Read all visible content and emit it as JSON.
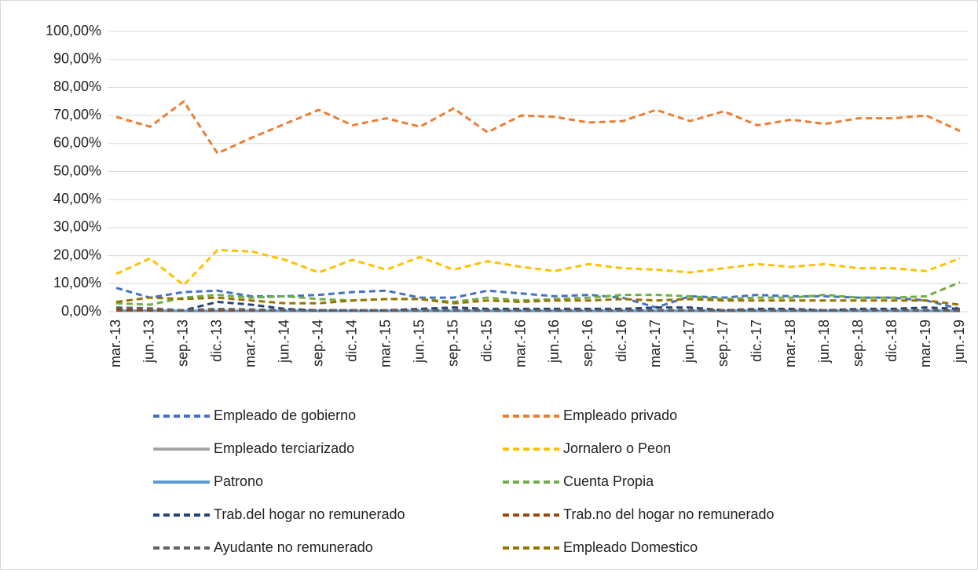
{
  "chart_data": {
    "type": "line",
    "categories": [
      "mar.-13",
      "jun.-13",
      "sep.-13",
      "dic.-13",
      "mar.-14",
      "jun.-14",
      "sep.-14",
      "dic.-14",
      "mar.-15",
      "jun.-15",
      "sep.-15",
      "dic.-15",
      "mar.-16",
      "jun.-16",
      "sep.-16",
      "dic.-16",
      "mar.-17",
      "jun.-17",
      "sep.-17",
      "dic.-17",
      "mar.-18",
      "jun.-18",
      "sep.-18",
      "dic.-18",
      "mar.-19",
      "jun.-19"
    ],
    "ylim": [
      0,
      100
    ],
    "yticks": [
      {
        "value": 0,
        "label": "0,00%"
      },
      {
        "value": 10,
        "label": "10,00%"
      },
      {
        "value": 20,
        "label": "20,00%"
      },
      {
        "value": 30,
        "label": "30,00%"
      },
      {
        "value": 40,
        "label": "40,00%"
      },
      {
        "value": 50,
        "label": "50,00%"
      },
      {
        "value": 60,
        "label": "60,00%"
      },
      {
        "value": 70,
        "label": "70,00%"
      },
      {
        "value": 80,
        "label": "80,00%"
      },
      {
        "value": 90,
        "label": "90,00%"
      },
      {
        "value": 100,
        "label": "100,00%"
      }
    ],
    "grid": true,
    "legend": "bottom",
    "series": [
      {
        "name": "Empleado de gobierno",
        "color": "#4472c4",
        "dashed": true,
        "values": [
          8.5,
          5,
          7,
          7.5,
          5.5,
          5.5,
          6,
          7,
          7.5,
          5,
          5,
          7.5,
          6.5,
          5.5,
          6,
          5,
          1.5,
          5.5,
          5,
          6,
          5.5,
          5.5,
          5,
          5,
          4,
          1
        ]
      },
      {
        "name": "Empleado privado",
        "color": "#ed7d31",
        "dashed": true,
        "values": [
          69.5,
          66,
          75,
          56.5,
          62,
          67,
          72,
          66.5,
          69,
          66,
          72.5,
          64,
          70,
          69.5,
          67.5,
          68,
          72,
          68,
          71.5,
          66.5,
          68.5,
          67,
          69,
          69,
          70,
          64.5
        ]
      },
      {
        "name": "Empleado terciarizado",
        "color": "#a5a5a5",
        "dashed": false,
        "values": [
          0.3,
          0.3,
          0.2,
          0.2,
          0.2,
          0.2,
          0.2,
          0.2,
          0.2,
          0.2,
          0.2,
          0.2,
          0.2,
          0.2,
          0.2,
          0.2,
          0.2,
          0.2,
          0.2,
          0.2,
          0.2,
          0.2,
          0.2,
          0.2,
          0.2,
          0.2
        ]
      },
      {
        "name": "Jornalero o Peon",
        "color": "#ffc000",
        "dashed": true,
        "values": [
          13.5,
          19,
          9.5,
          22,
          21.5,
          18.5,
          14,
          18.5,
          15,
          19.5,
          15,
          18,
          16,
          14.5,
          17,
          15.5,
          15,
          14,
          15.5,
          17,
          16,
          17,
          15.5,
          15.5,
          14.5,
          19
        ]
      },
      {
        "name": "Patrono",
        "color": "#5b9bd5",
        "dashed": false,
        "values": [
          0.4,
          0.4,
          0.3,
          0.3,
          0.3,
          0.3,
          0.3,
          0.3,
          0.3,
          0.3,
          0.3,
          0.3,
          0.3,
          0.3,
          0.3,
          0.3,
          0.3,
          0.3,
          0.3,
          0.3,
          0.3,
          0.3,
          0.3,
          0.3,
          0.3,
          0.3
        ]
      },
      {
        "name": "Cuenta Propia",
        "color": "#70ad47",
        "dashed": true,
        "values": [
          3,
          2.5,
          5,
          6,
          5,
          5.5,
          4.5,
          4,
          4.5,
          4.5,
          3.5,
          5,
          4,
          4.5,
          5,
          6,
          6,
          5.5,
          4.5,
          5,
          5,
          6,
          5,
          5,
          5.5,
          10.5
        ]
      },
      {
        "name": "Trab.del hogar no remunerado",
        "color": "#264478",
        "dashed": true,
        "values": [
          1,
          0.5,
          0.5,
          3.5,
          2.5,
          1,
          0.5,
          0.5,
          0.5,
          1,
          1.5,
          1,
          1,
          1,
          1,
          1,
          1.5,
          1.5,
          0.5,
          1,
          1,
          0.5,
          1,
          1,
          1.5,
          1
        ]
      },
      {
        "name": "Trab.no del hogar no remunerado",
        "color": "#9e480e",
        "dashed": true,
        "values": [
          0.5,
          0.5,
          0.5,
          0.5,
          0.5,
          0.5,
          0.5,
          0.5,
          0.5,
          0.5,
          0.5,
          0.5,
          0.5,
          0.5,
          0.5,
          0.5,
          0.5,
          0.5,
          0.5,
          0.5,
          0.5,
          0.5,
          0.5,
          0.5,
          0.5,
          0.5
        ]
      },
      {
        "name": "Ayudante no remunerado",
        "color": "#636363",
        "dashed": true,
        "values": [
          1.5,
          1.2,
          0.5,
          1,
          0.8,
          0.5,
          0.5,
          0.5,
          0.3,
          0.5,
          0.5,
          0.5,
          0.5,
          0.5,
          0.5,
          0.5,
          0.5,
          0.5,
          0.3,
          0.5,
          0.5,
          0.5,
          0.5,
          0.5,
          0.5,
          0.3
        ]
      },
      {
        "name": "Empleado Domestico",
        "color": "#997300",
        "dashed": true,
        "values": [
          3.5,
          5,
          4.5,
          5,
          4,
          3,
          3,
          4,
          4.5,
          4.5,
          3,
          4,
          3.5,
          4,
          4,
          4.5,
          4,
          4.5,
          4,
          4,
          4,
          4,
          4,
          4,
          4,
          2.5
        ]
      }
    ]
  }
}
